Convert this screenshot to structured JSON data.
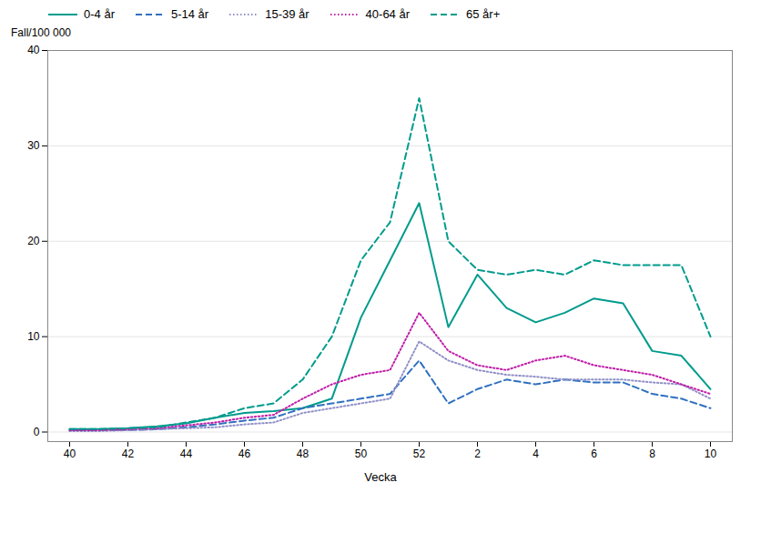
{
  "chart_data": {
    "type": "line",
    "xlabel": "Vecka",
    "ylabel": "Fall/100 000",
    "categories": [
      "40",
      null,
      "42",
      null,
      "44",
      null,
      "46",
      null,
      "48",
      null,
      "50",
      null,
      "52",
      null,
      "2",
      null,
      "4",
      null,
      "6",
      null,
      "8",
      null,
      "10"
    ],
    "series": [
      {
        "name": "0-4 år",
        "color": "#009b8d",
        "line_style": "solid",
        "values": [
          0.3,
          0.3,
          0.4,
          0.6,
          0.9,
          1.5,
          2.0,
          2.2,
          2.5,
          3.5,
          12.0,
          18.0,
          24.0,
          11.0,
          16.5,
          13.0,
          11.5,
          12.5,
          14.0,
          13.5,
          8.5,
          8.0,
          4.5
        ]
      },
      {
        "name": "5-14 år",
        "color": "#3070c0",
        "line_style": "dashed",
        "values": [
          0.2,
          0.2,
          0.2,
          0.3,
          0.5,
          0.8,
          1.2,
          1.5,
          2.5,
          3.0,
          3.5,
          4.0,
          7.5,
          3.0,
          4.5,
          5.5,
          5.0,
          5.5,
          5.2,
          5.2,
          4.0,
          3.5,
          2.5
        ]
      },
      {
        "name": "15-39 år",
        "color": "#9090c8",
        "line_style": "dotted",
        "values": [
          0.1,
          0.1,
          0.2,
          0.3,
          0.4,
          0.5,
          0.8,
          1.0,
          2.0,
          2.5,
          3.0,
          3.5,
          9.5,
          7.5,
          6.5,
          6.0,
          5.8,
          5.5,
          5.5,
          5.5,
          5.2,
          5.0,
          3.5
        ]
      },
      {
        "name": "40-64 år",
        "color": "#c020a8",
        "line_style": "dotted",
        "values": [
          0.2,
          0.2,
          0.3,
          0.4,
          0.7,
          1.0,
          1.5,
          1.8,
          3.5,
          5.0,
          6.0,
          6.5,
          12.5,
          8.5,
          7.0,
          6.5,
          7.5,
          8.0,
          7.0,
          6.5,
          6.0,
          5.0,
          4.0
        ]
      },
      {
        "name": "65 år+",
        "color": "#009b8d",
        "line_style": "dashed",
        "values": [
          0.3,
          0.3,
          0.4,
          0.5,
          1.0,
          1.5,
          2.5,
          3.0,
          5.5,
          10.0,
          18.0,
          22.0,
          35.0,
          20.0,
          17.0,
          16.5,
          17.0,
          16.5,
          18.0,
          17.5,
          17.5,
          17.5,
          10.0
        ]
      }
    ],
    "ylim": [
      -1,
      40
    ],
    "yticks": [
      0,
      10,
      20,
      30,
      40
    ],
    "grid": true,
    "legend": "top"
  }
}
